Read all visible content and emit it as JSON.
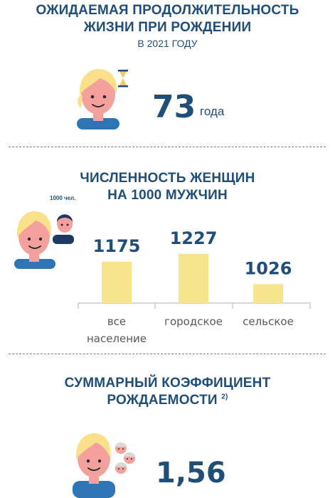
{
  "section1": {
    "title_line1": "ОЖИДАЕМАЯ ПРОДОЛЖИТЕЛЬНОСТЬ",
    "title_line2": "ЖИЗНИ ПРИ РОЖДЕНИИ",
    "subtitle": "В 2021 ГОДУ",
    "value": "73",
    "unit": "года"
  },
  "section2": {
    "title_line1": "ЧИСЛЕННОСТЬ ЖЕНЩИН",
    "title_line2": "НА 1000 МУЖЧИН",
    "icon_label": "1000 чел."
  },
  "section3": {
    "title_line1": "СУММАРНЫЙ КОЭФФИЦИЕНТ",
    "title_line2": "РОЖДАЕМОСТИ",
    "footnote": "2)",
    "value": "1,56"
  },
  "chart_data": {
    "type": "bar",
    "title": "ЧИСЛЕННОСТЬ ЖЕНЩИН НА 1000 МУЖЧИН",
    "categories": [
      [
        "все",
        "население"
      ],
      [
        "городское"
      ],
      [
        "сельское"
      ]
    ],
    "values": [
      1175,
      1227,
      1026
    ],
    "value_labels": [
      "1175",
      "1227",
      "1026"
    ],
    "ylim": [
      900,
      1240
    ],
    "grid": false,
    "bar_color": "#f6e58d"
  },
  "colors": {
    "primary": "#1f4e79",
    "skin": "#f4a09c",
    "hair": "#fbe08a",
    "shirt": "#2e75b6",
    "bar": "#f6e58d"
  }
}
